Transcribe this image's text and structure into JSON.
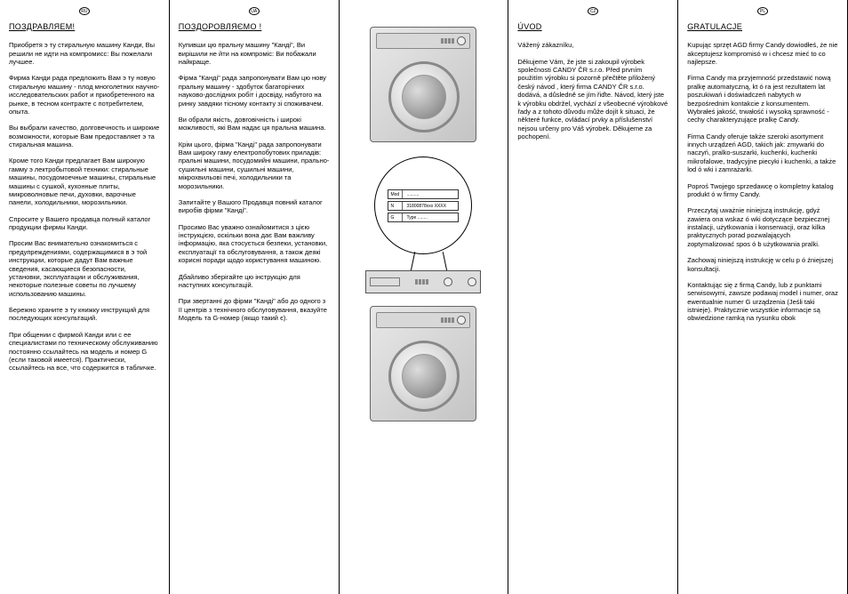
{
  "columns": {
    "ru": {
      "lang": "RU",
      "heading": "ПОЗДРАВЛЯЕМ!",
      "paras": [
        "Приобретя э ту стиральную машину Канди, Вы решили не идти на компромисс: Вы пожелали лучшее.",
        "Фирма Канди рада предложить Вам э ту новую стиральную машину - плод многолетних научно-исследовательских работ и приобретенного на рынке, в тесном контракте с потребителем, опыта.",
        "Вы выбрали качество, долговечность и широкие возможности, которые Вам предоставляет э та стиральная машина.",
        "Кроме того Канди предлагает Вам широкую гамму э лектробытовой техники: стиральные машины, посудомоечные машины, стиральные машины с сушкой, кухонные плиты, микроволновые печи, духовки, варочные панели, холодильники, морозильники.",
        "Спросите у Вашего продавца полный каталог продукции фирмы Канди.",
        "Просим Вас внимательно ознакомиться с предупреждениями, содержащимися в э той инструкции, которые дадут Вам важные сведения, касающиеся безопасности, установки, эксплуатации и обслуживания, некоторые полезные советы по лучшему использованию машины.",
        "Бережно храните э ту книжку инструкций для последующих консультаций.",
        "При общении с фирмой Канди или с ее специалистами по техническому обслуживанию постоянно ссылайтесь на модель и номер G (если таковой имеется). Практически, ссылайтесь на все, что содержится в табличке."
      ]
    },
    "ua": {
      "lang": "UA",
      "heading": "ПОЗДОРОВЛЯЄМО !",
      "paras": [
        "Купивши цю пральну машину \"Канді\", Ви вирішили не йти на компроміс: Ви побажали найкраще.",
        "Фірма \"Канді\" рада запропонувати Вам цю нову пральну машину - здобуток багаторічних науково-дослідних робіт і досвіду, набутого на ринку завдяки тісному контакту зі споживачем.",
        "Ви обрали якість, довговічність і широкі можливості, які Вам надає ця пральна машина.",
        "Крім цього, фірма \"Канді\" рада запропонувати Вам широку гаму електропобутових приладів: пральні машини, посудомийні машини, прально-сушильні машини, сушильні машини, мікрохвильові печі, холодильники та морозильники.",
        "Запитайте у Вашого Продавця повний каталог виробів фірми \"Канді\".",
        "Просимо Вас уважно ознайомитися з цією інструкцією, оскільки вона дає Вам важливу інформацію, яка стосується безпеки, установки, експлуатації та обслуговування, а також деякі корисні поради щодо користування машиною.",
        "Дбайливо зберігайте цю інструкцію для наступних консультацій.",
        "При звертанні до фірми \"Канді\" або до одного з її центрів з технічного обслуговування, вказуйте Модель та G-номер (якщо такий є)."
      ]
    },
    "cz": {
      "lang": "CZ",
      "heading": "ÚVOD",
      "paras": [
        "Vážený zákazníku,",
        "Děkujeme Vám, že jste si zakoupil výrobek společnosti CANDY ČR s.r.o.\nPřed prvním použitím výrobku si pozorně přečtěte přiložený český návod , který firma CANDY ČR s.r.o. dodává, a důsledně se jím řiďte. Návod, který jste k výrobku obdržel, vychází z všeobecné výrobkové řady a z tohoto důvodu může dojít k situaci, že některé funkce, ovládací prvky a příslušenství nejsou určeny pro Váš výrobek. Děkujeme za pochopení."
      ]
    },
    "pl": {
      "lang": "PL",
      "heading": "GRATULACJE",
      "paras": [
        "Kupując sprzęt AGD firmy Candy dowiodłeś, że nie akceptujesz kompromisó w i chcesz mieć to co najlepsze.",
        "Firma Candy ma przyjemność przedstawić nową pralkę automatyczną, kt ó ra jest rezultatem lat poszukiwań i doświadczeń nabytych w bezpośrednim kontakcie z konsumentem. Wybrałeś jakość, trwałość i wysoką sprawność - cechy charakteryzujące pralkę Candy.",
        "Firma Candy oferuje także szeroki asortyment innych urządzeń AGD, takich jak: zmywarki do naczyń, pralko-suszarki, kuchenki, kuchenki mikrofalowe, tradycyjne piecyki i kuchenki, a także lod ó wki i zamrażarki.",
        "Poproś Twojego sprzedawcę o kompletny katalog produkt ó w firmy Candy.",
        "Przeczytaj uważnie niniejszą instrukcję, gdyż zawiera ona wskaz ó wki dotyczące bezpiecznej instalacji, użytkowania i konserwacji, oraz kilka praktycznych porad pozwalających zoptymalizować spos ó b użytkowania pralki.",
        "Zachowaj niniejszą instrukcję w celu p ó źniejszej konsultacji.",
        "Kontaktując się z firmą Candy, lub z punktami serwisowymi, zawsze podawaj model i numer, oraz ewentualnie numer G urządzenia (Jeśli taki istnieje). Praktycznie wszystkie informacje są obwiedzione ramką na rysunku obok"
      ]
    }
  },
  "label": {
    "mod_key": "Mod",
    "mod_val": "..........",
    "n_key": "N",
    "n_val": "31800878xxx  XXXX",
    "g_key": "G",
    "g_val": "Type ........"
  },
  "colors": {
    "text": "#000000",
    "bg": "#ffffff",
    "rule": "#000000",
    "metal_light": "#e8e8e8",
    "metal_dark": "#c4c4c4"
  }
}
